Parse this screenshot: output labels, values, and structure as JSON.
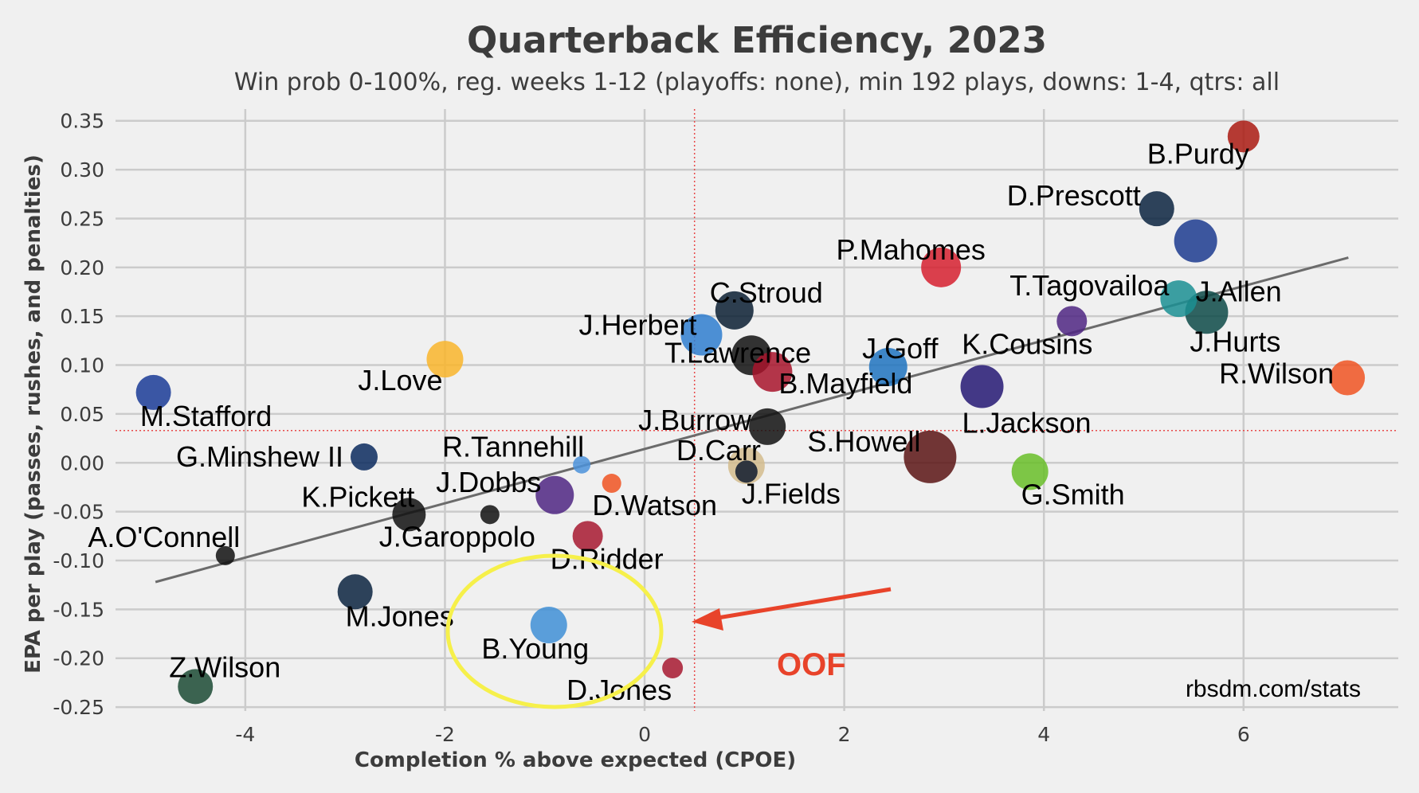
{
  "chart_data": {
    "type": "scatter",
    "title": "Quarterback Efficiency, 2023",
    "subtitle": "Win prob 0-100%, reg. weeks 1-12 (playoffs: none), min 192 plays, downs: 1-4, qtrs: all",
    "xlabel": "Completion % above expected (CPOE)",
    "ylabel": "EPA per play (passes, rushes, and penalties)",
    "xlim": [
      -5.3,
      7.55
    ],
    "ylim": [
      -0.254,
      0.362
    ],
    "xticks": [
      "-4",
      "-2",
      "0",
      "2",
      "4",
      "6"
    ],
    "yticks": [
      "0.35",
      "0.30",
      "0.25",
      "0.20",
      "0.15",
      "0.10",
      "0.05",
      "0.00",
      "-0.05",
      "-0.10",
      "-0.15",
      "-0.20",
      "-0.25"
    ],
    "grid": true,
    "reference_lines": {
      "x_mean": 0.5,
      "y_mean": 0.033
    },
    "trend_line": {
      "x": [
        -4.9,
        7.05
      ],
      "y": [
        -0.122,
        0.21
      ]
    },
    "points": [
      {
        "name": "B.Purdy",
        "x": 6.0,
        "y": 0.334,
        "size": 20,
        "color": "#aa1a12"
      },
      {
        "name": "D.Prescott",
        "x": 5.13,
        "y": 0.26,
        "size": 22,
        "color": "#0b2340"
      },
      {
        "name": "J.Allen",
        "x": 5.52,
        "y": 0.227,
        "size": 27,
        "color": "#1c3b8f"
      },
      {
        "name": "P.Mahomes",
        "x": 2.97,
        "y": 0.2,
        "size": 25,
        "color": "#d6202f"
      },
      {
        "name": "T.Tagovailoa",
        "x": 5.35,
        "y": 0.168,
        "size": 23,
        "color": "#1b8f93"
      },
      {
        "name": "J.Hurts",
        "x": 5.63,
        "y": 0.154,
        "size": 27,
        "color": "#0d4a48"
      },
      {
        "name": "K.Cousins",
        "x": 4.28,
        "y": 0.145,
        "size": 19,
        "color": "#4f2683"
      },
      {
        "name": "C.Stroud",
        "x": 0.9,
        "y": 0.156,
        "size": 24,
        "color": "#0a1f33"
      },
      {
        "name": "J.Herbert",
        "x": 0.57,
        "y": 0.131,
        "size": 26,
        "color": "#2f7ecf"
      },
      {
        "name": "T.Lawrence",
        "x": 1.07,
        "y": 0.11,
        "size": 25,
        "color": "#111111"
      },
      {
        "name": "B.Mayfield",
        "x": 1.28,
        "y": 0.093,
        "size": 25,
        "color": "#a8142c"
      },
      {
        "name": "J.Goff",
        "x": 2.44,
        "y": 0.098,
        "size": 24,
        "color": "#1f73c0"
      },
      {
        "name": "R.Wilson",
        "x": 7.04,
        "y": 0.087,
        "size": 22,
        "color": "#f05322"
      },
      {
        "name": "L.Jackson",
        "x": 3.38,
        "y": 0.078,
        "size": 27,
        "color": "#241773"
      },
      {
        "name": "J.Love",
        "x": -2.0,
        "y": 0.106,
        "size": 23,
        "color": "#f9b52c"
      },
      {
        "name": "M.Stafford",
        "x": -4.92,
        "y": 0.072,
        "size": 22,
        "color": "#1a3b97"
      },
      {
        "name": "J.Burrow",
        "x": 1.23,
        "y": 0.037,
        "size": 23,
        "color": "#111111"
      },
      {
        "name": "S.Howell",
        "x": 2.86,
        "y": 0.006,
        "size": 33,
        "color": "#5a1414"
      },
      {
        "name": "G.Smith",
        "x": 3.86,
        "y": -0.009,
        "size": 23,
        "color": "#69be28"
      },
      {
        "name": "D.Carr",
        "x": 1.02,
        "y": -0.003,
        "size": 23,
        "color": "#d3bc8d"
      },
      {
        "name": "J.Fields",
        "x": 1.02,
        "y": -0.009,
        "size": 14,
        "color": "#111b2e"
      },
      {
        "name": "G.Minshew II",
        "x": -2.81,
        "y": 0.006,
        "size": 17,
        "color": "#0a2a5e"
      },
      {
        "name": "R.Tannehill",
        "x": -0.63,
        "y": -0.002,
        "size": 11,
        "color": "#4b92db"
      },
      {
        "name": "D.Watson",
        "x": -0.33,
        "y": -0.021,
        "size": 12,
        "color": "#f05322"
      },
      {
        "name": "J.Dobbs",
        "x": -0.9,
        "y": -0.033,
        "size": 24,
        "color": "#4f2683"
      },
      {
        "name": "K.Pickett",
        "x": -2.36,
        "y": -0.053,
        "size": 21,
        "color": "#111111"
      },
      {
        "name": "J.Garoppolo",
        "x": -1.55,
        "y": -0.053,
        "size": 12,
        "color": "#111111"
      },
      {
        "name": "D.Ridder",
        "x": -0.57,
        "y": -0.075,
        "size": 19,
        "color": "#a71930"
      },
      {
        "name": "A.O'Connell",
        "x": -4.2,
        "y": -0.095,
        "size": 12,
        "color": "#111111"
      },
      {
        "name": "M.Jones",
        "x": -2.9,
        "y": -0.132,
        "size": 22,
        "color": "#0b2340"
      },
      {
        "name": "B.Young",
        "x": -0.96,
        "y": -0.166,
        "size": 23,
        "color": "#3f8fd6"
      },
      {
        "name": "D.Jones",
        "x": 0.28,
        "y": -0.21,
        "size": 13,
        "color": "#a71930"
      },
      {
        "name": "Z.Wilson",
        "x": -4.5,
        "y": -0.229,
        "size": 22,
        "color": "#1b4a34"
      }
    ]
  },
  "annotations": {
    "source": "rbsdm.com/stats",
    "oof_text": "OOF",
    "oof_color": "#e8432a",
    "circle_color": "#f6f04a"
  }
}
